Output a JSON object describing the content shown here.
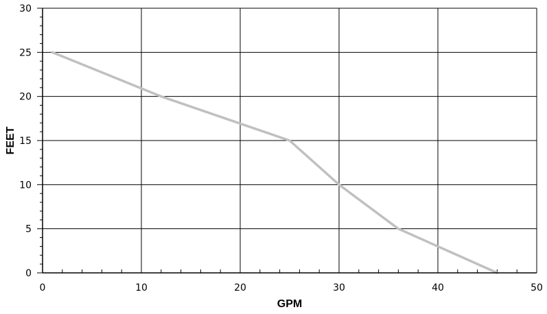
{
  "chart_data": {
    "type": "line",
    "title": "",
    "xlabel": "GPM",
    "ylabel": "FEET",
    "xlim": [
      0,
      50
    ],
    "ylim": [
      0,
      30
    ],
    "x_ticks": [
      "0",
      "10",
      "20",
      "30",
      "40",
      "50"
    ],
    "y_ticks": [
      "0",
      "5",
      "10",
      "15",
      "20",
      "25",
      "30"
    ],
    "grid": true,
    "series": [
      {
        "color": "#c0c0c0",
        "x": [
          1,
          12,
          25,
          30,
          36,
          46
        ],
        "y": [
          25,
          20,
          15,
          10,
          5,
          0
        ]
      }
    ]
  }
}
